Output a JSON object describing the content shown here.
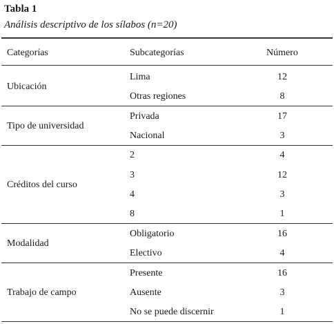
{
  "table": {
    "label": "Tabla 1",
    "title": "Análisis descriptivo de los sílabos (n=20)",
    "headers": {
      "category": "Categorías",
      "subcategory": "Subcategorías",
      "number": "Número"
    },
    "groups": [
      {
        "category": "Ubicación",
        "rows": [
          {
            "sub": "Lima",
            "num": "12"
          },
          {
            "sub": "Otras regiones",
            "num": "8"
          }
        ]
      },
      {
        "category": "Tipo de universidad",
        "rows": [
          {
            "sub": "Privada",
            "num": "17"
          },
          {
            "sub": "Nacional",
            "num": "3"
          }
        ]
      },
      {
        "category": "Créditos del curso",
        "rows": [
          {
            "sub": "2",
            "num": "4"
          },
          {
            "sub": "3",
            "num": "12"
          },
          {
            "sub": "4",
            "num": "3"
          },
          {
            "sub": "8",
            "num": "1"
          }
        ]
      },
      {
        "category": "Modalidad",
        "rows": [
          {
            "sub": "Obligatorio",
            "num": "16"
          },
          {
            "sub": "Electivo",
            "num": "4"
          }
        ]
      },
      {
        "category": "Trabajo de campo",
        "rows": [
          {
            "sub": "Presente",
            "num": "16"
          },
          {
            "sub": "Ausente",
            "num": "3"
          },
          {
            "sub": "No se puede discernir",
            "num": "1"
          }
        ]
      }
    ]
  }
}
